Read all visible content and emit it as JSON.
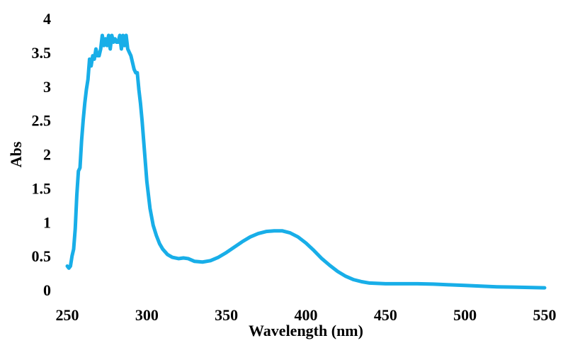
{
  "chart_data": {
    "type": "line",
    "x_label": "Wavelength (nm)",
    "y_label": "Abs",
    "color": "#18aee8",
    "xlim": [
      250,
      550
    ],
    "xticks": [
      250,
      300,
      350,
      400,
      450,
      500,
      550
    ],
    "ylim": [
      0,
      4
    ],
    "yticks": [
      0,
      0.5,
      1,
      1.5,
      2,
      2.5,
      3,
      3.5,
      4
    ],
    "grid": false,
    "x": [
      250,
      251,
      252,
      253,
      254,
      255,
      256,
      257,
      258,
      259,
      260,
      261,
      262,
      263,
      264,
      265,
      266,
      267,
      268,
      269,
      270,
      271,
      272,
      273,
      274,
      275,
      276,
      277,
      278,
      279,
      280,
      281,
      282,
      283,
      284,
      285,
      286,
      287,
      288,
      289,
      290,
      291,
      292,
      293,
      294,
      295,
      296,
      297,
      298,
      299,
      300,
      302,
      304,
      306,
      308,
      310,
      313,
      316,
      320,
      323,
      326,
      330,
      335,
      340,
      345,
      350,
      355,
      360,
      365,
      370,
      375,
      380,
      385,
      390,
      395,
      400,
      405,
      410,
      415,
      420,
      425,
      430,
      435,
      440,
      450,
      460,
      470,
      480,
      490,
      500,
      510,
      520,
      530,
      540,
      550
    ],
    "values": [
      0.35,
      0.32,
      0.35,
      0.5,
      0.6,
      0.9,
      1.4,
      1.75,
      1.8,
      2.2,
      2.5,
      2.75,
      2.95,
      3.1,
      3.4,
      3.3,
      3.45,
      3.4,
      3.55,
      3.45,
      3.45,
      3.55,
      3.75,
      3.6,
      3.7,
      3.6,
      3.75,
      3.55,
      3.75,
      3.65,
      3.7,
      3.65,
      3.65,
      3.75,
      3.55,
      3.75,
      3.6,
      3.75,
      3.55,
      3.5,
      3.45,
      3.35,
      3.25,
      3.2,
      3.2,
      2.95,
      2.75,
      2.5,
      2.2,
      1.9,
      1.6,
      1.2,
      0.95,
      0.8,
      0.68,
      0.6,
      0.52,
      0.48,
      0.46,
      0.47,
      0.46,
      0.42,
      0.41,
      0.43,
      0.48,
      0.55,
      0.63,
      0.71,
      0.78,
      0.83,
      0.86,
      0.87,
      0.87,
      0.84,
      0.78,
      0.69,
      0.58,
      0.46,
      0.36,
      0.27,
      0.2,
      0.15,
      0.12,
      0.1,
      0.09,
      0.09,
      0.09,
      0.085,
      0.075,
      0.065,
      0.055,
      0.045,
      0.04,
      0.035,
      0.03
    ]
  }
}
